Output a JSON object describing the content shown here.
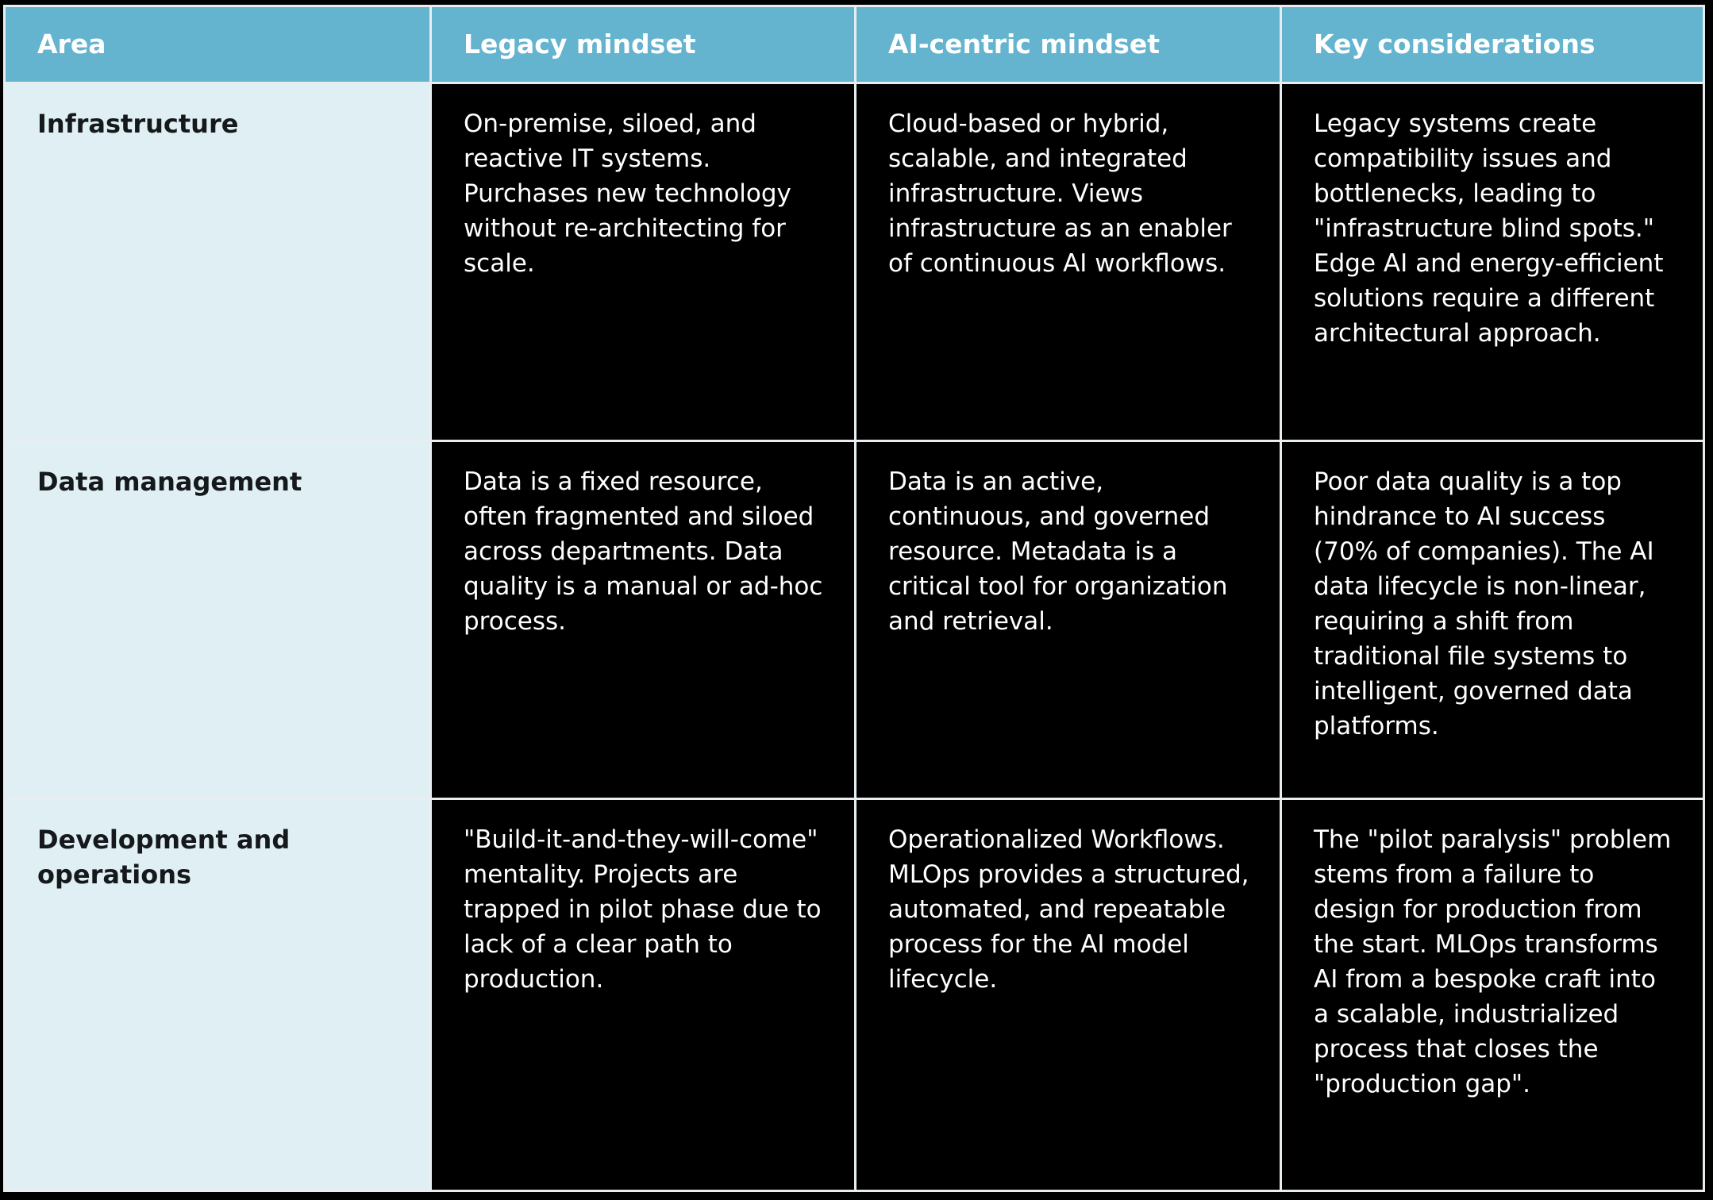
{
  "table": {
    "headers": [
      "Area",
      "Legacy mindset",
      "AI-centric mindset",
      "Key considerations"
    ],
    "rows": [
      {
        "area": "Infrastructure",
        "legacy": "On-premise, siloed, and reactive IT systems. Purchases new technology without re-architecting for scale.",
        "ai": "Cloud-based or hybrid, scalable, and integrated infrastructure. Views infrastructure as an enabler of continuous AI workflows.",
        "key": "Legacy systems create compatibility issues and bottlenecks, leading to \"infrastructure blind spots.\"  Edge AI and energy-efficient solutions require a different architectural approach."
      },
      {
        "area": "Data management",
        "legacy": "Data is a fixed resource, often fragmented and siloed across departments. Data quality is a manual or ad-hoc process.",
        "ai": "Data is an active, continuous, and governed resource. Metadata is a critical tool for organization and retrieval.",
        "key": "Poor data quality is a top hindrance to AI success (70% of companies). The AI data lifecycle is non-linear, requiring a shift from traditional file systems to intelligent, governed data platforms."
      },
      {
        "area": "Development and operations",
        "legacy": "\"Build-it-and-they-will-come\" mentality. Projects are trapped in pilot phase due to lack of a clear path to production.",
        "ai": "Operationalized Workflows. MLOps provides a structured, automated, and repeatable process for the AI model lifecycle.",
        "key": "The \"pilot paralysis\" problem stems from a failure to design for production from the start. MLOps transforms AI from a bespoke craft into a scalable, industrialized process that closes the \"production gap\"."
      }
    ]
  },
  "colors": {
    "header_bg": "#64b4cf",
    "area_bg": "#e0eff4",
    "body_bg": "#000000",
    "text": "#ffffff"
  }
}
